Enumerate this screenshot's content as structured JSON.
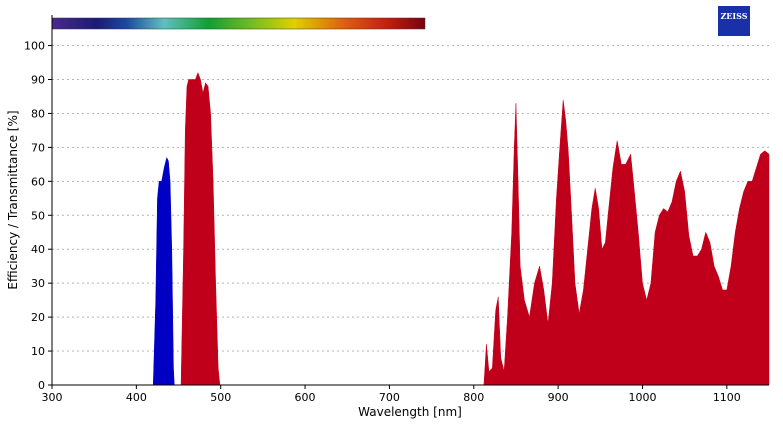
{
  "chart_data": {
    "type": "area",
    "logo": "ZEISS",
    "xlabel": "Wavelength [nm]",
    "ylabel": "Efficiency / Transmittance [%]",
    "xlim": [
      300,
      1150
    ],
    "ylim": [
      0,
      109
    ],
    "xticks": [
      300,
      400,
      500,
      600,
      700,
      800,
      900,
      1000,
      1100
    ],
    "yticks": [
      0,
      10,
      20,
      30,
      40,
      50,
      60,
      70,
      80,
      90,
      100
    ],
    "grid": true,
    "series": [
      {
        "color": "#0000c4",
        "x": [
          420,
          423,
          425,
          427,
          430,
          433,
          436,
          438,
          440,
          442,
          444,
          445
        ],
        "values": [
          0,
          25,
          55,
          60,
          60,
          64,
          67,
          66,
          60,
          40,
          5,
          0
        ]
      },
      {
        "color": "#c0001a",
        "x": [
          453,
          456,
          458,
          460,
          462,
          466,
          470,
          473,
          476,
          479,
          482,
          485,
          488,
          491,
          494,
          497,
          499
        ],
        "values": [
          0,
          40,
          75,
          88,
          90,
          90,
          90,
          92,
          90,
          86,
          89,
          88,
          80,
          60,
          30,
          5,
          0
        ]
      },
      {
        "color": "#c0001a",
        "x": [
          812,
          815,
          818,
          822,
          826,
          829,
          832,
          836,
          840,
          845,
          848,
          850,
          852,
          855,
          860,
          866,
          872,
          878,
          883,
          888,
          893,
          898,
          902,
          906,
          909,
          912,
          916,
          920,
          925,
          930,
          935,
          940,
          944,
          948,
          952,
          956,
          960,
          965,
          970,
          975,
          980,
          986,
          990,
          995,
          1000,
          1005,
          1010,
          1015,
          1020,
          1025,
          1030,
          1035,
          1040,
          1045,
          1050,
          1055,
          1060,
          1065,
          1070,
          1075,
          1080,
          1085,
          1090,
          1095,
          1100,
          1105,
          1110,
          1115,
          1120,
          1125,
          1130,
          1135,
          1140,
          1145,
          1150
        ],
        "values": [
          0,
          12,
          4,
          5,
          22,
          26,
          8,
          4,
          20,
          45,
          70,
          83,
          65,
          35,
          25,
          20,
          30,
          35,
          28,
          18,
          30,
          55,
          70,
          84,
          78,
          69,
          50,
          30,
          21,
          28,
          40,
          52,
          58,
          52,
          40,
          42,
          52,
          64,
          72,
          65,
          65,
          68,
          58,
          45,
          30,
          25,
          30,
          45,
          50,
          52,
          51,
          54,
          60,
          63,
          57,
          44,
          38,
          38,
          40,
          45,
          42,
          35,
          32,
          28,
          28,
          35,
          45,
          52,
          57,
          60,
          60,
          64,
          68,
          69,
          68
        ]
      }
    ]
  }
}
